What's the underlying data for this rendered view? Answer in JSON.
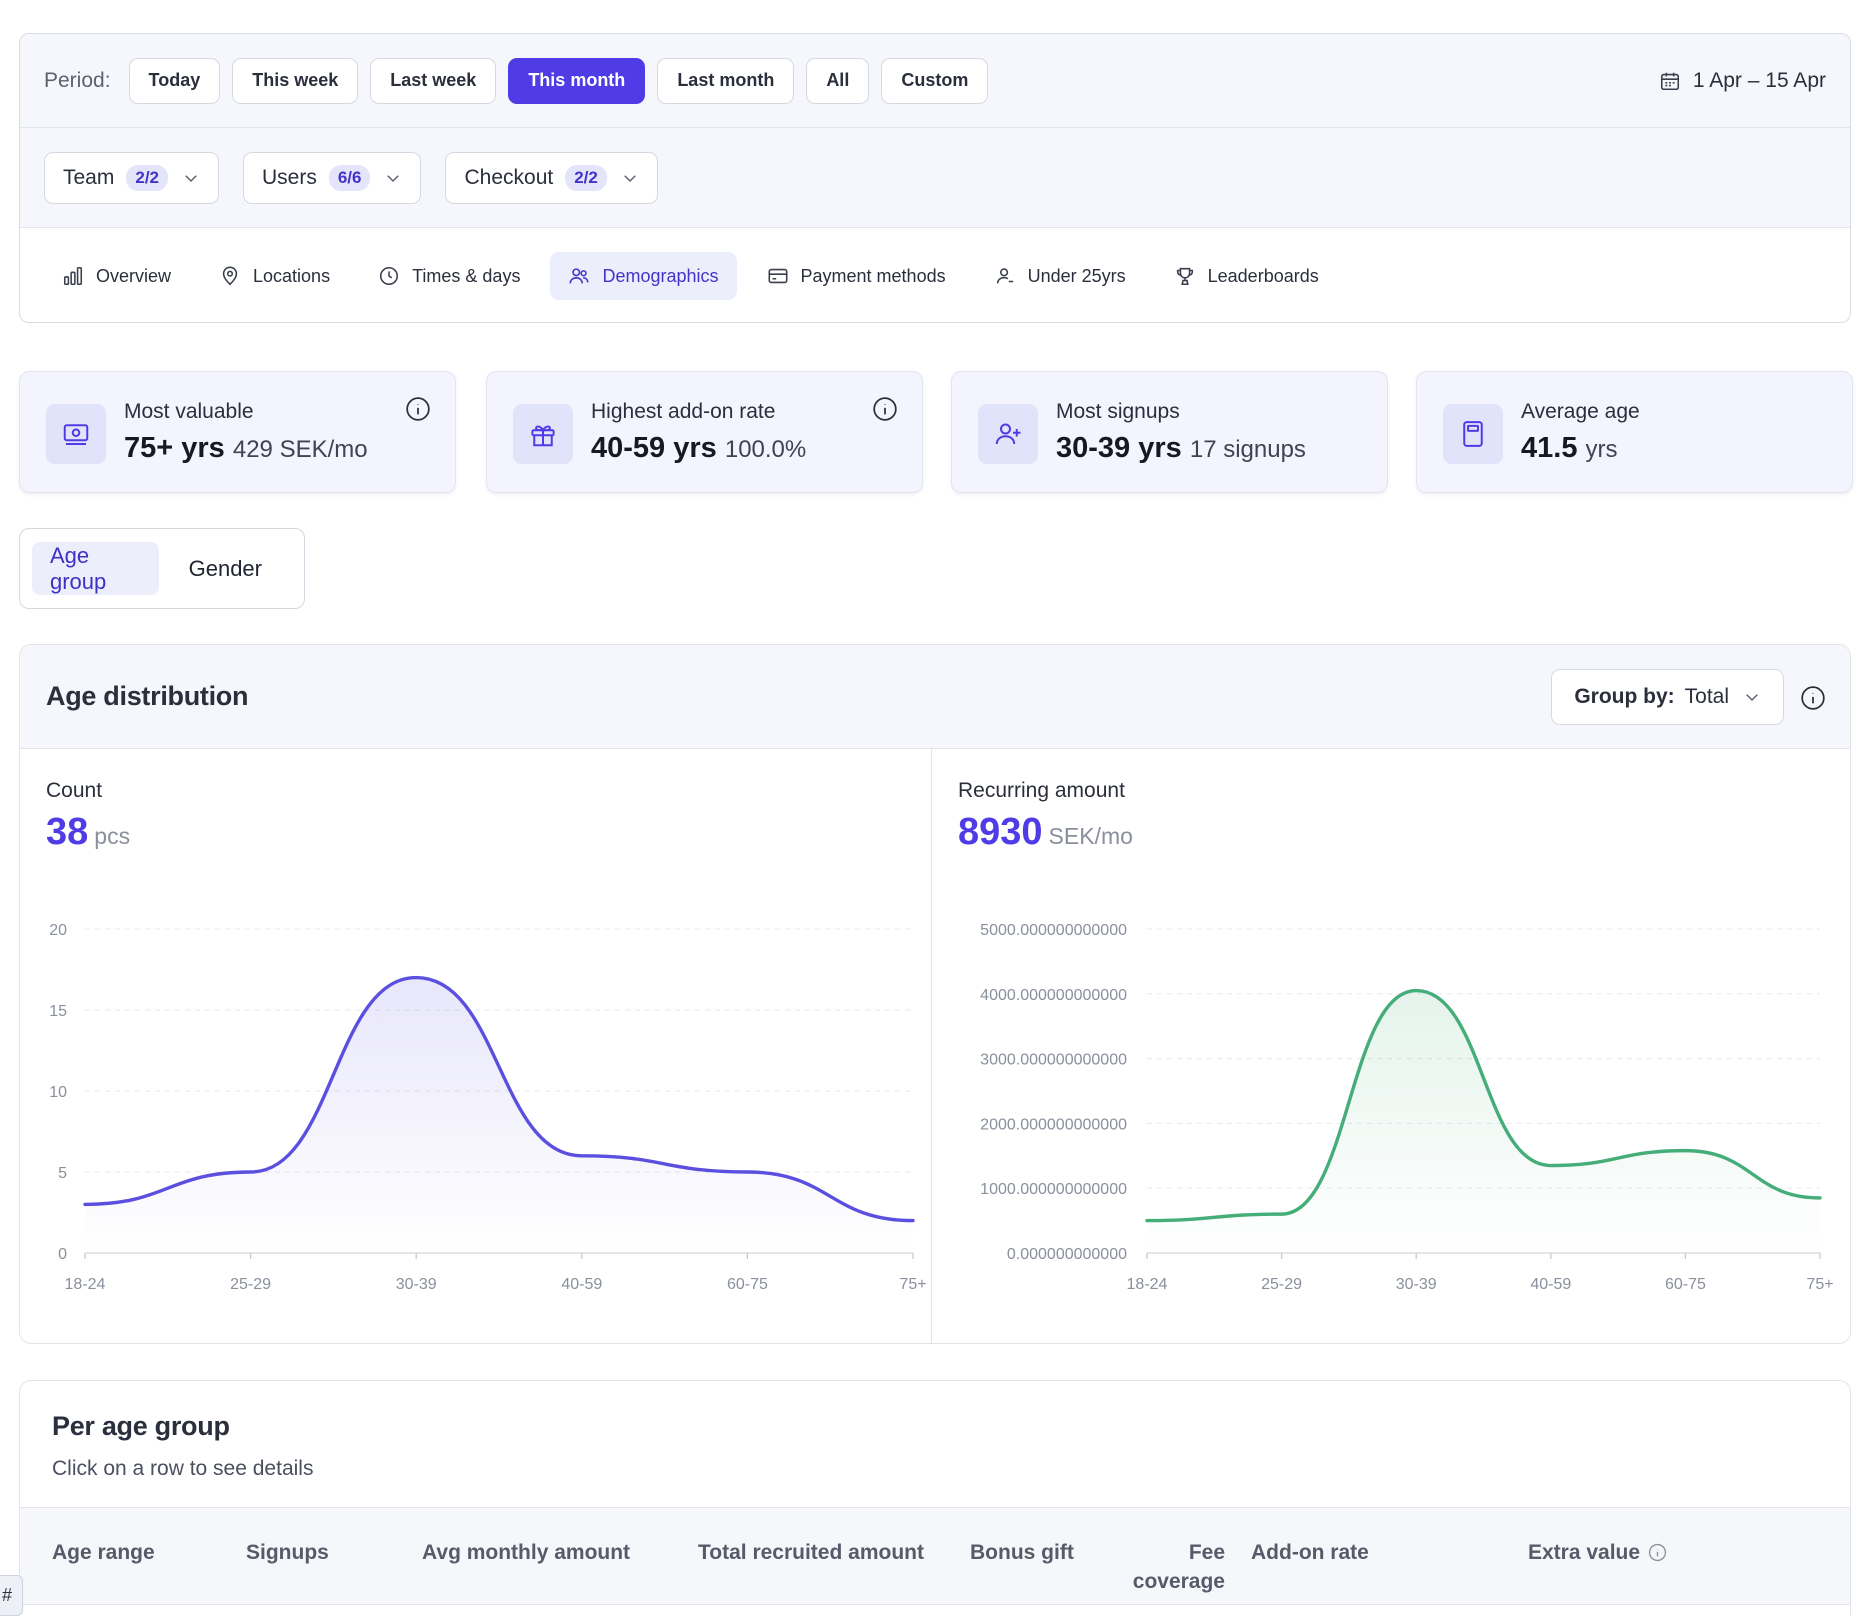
{
  "period": {
    "label": "Period:",
    "options": [
      "Today",
      "This week",
      "Last week",
      "This month",
      "Last month",
      "All",
      "Custom"
    ],
    "active": "This month",
    "date_range": "1 Apr – 15 Apr"
  },
  "filters": [
    {
      "label": "Team",
      "badge": "2/2"
    },
    {
      "label": "Users",
      "badge": "6/6"
    },
    {
      "label": "Checkout",
      "badge": "2/2"
    }
  ],
  "tabs": [
    {
      "label": "Overview",
      "icon": "bar-chart-icon"
    },
    {
      "label": "Locations",
      "icon": "map-pin-icon"
    },
    {
      "label": "Times & days",
      "icon": "clock-icon"
    },
    {
      "label": "Demographics",
      "icon": "users-icon"
    },
    {
      "label": "Payment methods",
      "icon": "credit-card-icon"
    },
    {
      "label": "Under 25yrs",
      "icon": "user-icon"
    },
    {
      "label": "Leaderboards",
      "icon": "trophy-icon"
    }
  ],
  "active_tab": "Demographics",
  "kpis": [
    {
      "title": "Most valuable",
      "value": "75+ yrs",
      "sub": "429 SEK/mo",
      "icon": "money-icon",
      "info": true
    },
    {
      "title": "Highest add-on rate",
      "value": "40-59 yrs",
      "sub": "100.0%",
      "icon": "gift-icon",
      "info": true
    },
    {
      "title": "Most signups",
      "value": "30-39 yrs",
      "sub": "17 signups",
      "icon": "user-plus-icon",
      "info": false
    },
    {
      "title": "Average age",
      "value": "41.5",
      "sub": "yrs",
      "icon": "calculator-icon",
      "info": false
    }
  ],
  "segment": {
    "options": [
      "Age group",
      "Gender"
    ],
    "active": "Age group"
  },
  "distribution": {
    "title": "Age distribution",
    "group_by_label": "Group by:",
    "group_by_value": "Total",
    "count": {
      "label": "Count",
      "value": "38",
      "unit": "pcs"
    },
    "recurring": {
      "label": "Recurring amount",
      "value": "8930",
      "unit": "SEK/mo"
    }
  },
  "chart_data": [
    {
      "type": "area",
      "title": "Count",
      "categories": [
        "18-24",
        "25-29",
        "30-39",
        "40-59",
        "60-75",
        "75+"
      ],
      "values": [
        3,
        5,
        17,
        6,
        5,
        2
      ],
      "ylim": [
        0,
        20
      ],
      "yticks": [
        "0",
        "5",
        "10",
        "15",
        "20"
      ],
      "color": "#5b4fe0",
      "grid": true
    },
    {
      "type": "area",
      "title": "Recurring amount",
      "categories": [
        "18-24",
        "25-29",
        "30-39",
        "40-59",
        "60-75",
        "75+"
      ],
      "values": [
        500,
        600,
        4050,
        1350,
        1580,
        850
      ],
      "ylim": [
        0,
        5000
      ],
      "yticks": [
        "0.000000000000",
        "1000.000000000000",
        "2000.000000000000",
        "3000.000000000000",
        "4000.000000000000",
        "5000.000000000000"
      ],
      "color": "#44ad78",
      "grid": true
    }
  ],
  "table": {
    "title": "Per age group",
    "subtitle": "Click on a row to see details",
    "columns": [
      "Age range",
      "Signups",
      "Avg monthly amount",
      "Total recruited amount",
      "Bonus gift",
      "Fee coverage",
      "Add-on rate",
      "Extra value"
    ]
  },
  "corner_tab": "#",
  "colors": {
    "accent": "#4f3ce6",
    "count_line": "#5b4fe0",
    "amount_line": "#44ad78"
  }
}
